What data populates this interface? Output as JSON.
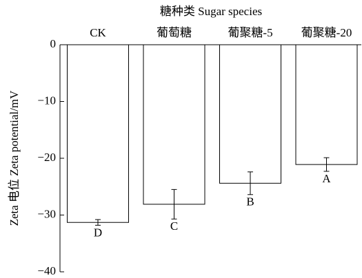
{
  "chart_data": {
    "type": "bar",
    "title": "糖种类 Sugar species",
    "y_label": "Zeta 电位 Zeta potential/mV",
    "categories": [
      "CK",
      "葡萄糖",
      "葡聚糖-5",
      "葡聚糖-20"
    ],
    "values": [
      -31.3,
      -28.1,
      -24.4,
      -21.1
    ],
    "errors": [
      0.5,
      2.6,
      2.0,
      1.2
    ],
    "annotations": [
      "D",
      "C",
      "B",
      "A"
    ],
    "color": "#ffffff",
    "ylim": [
      -40,
      0
    ],
    "yticks": [
      {
        "value": 0,
        "label": "0"
      },
      {
        "value": -10,
        "label": "−10"
      },
      {
        "value": -20,
        "label": "−20"
      },
      {
        "value": -30,
        "label": "−30"
      },
      {
        "value": -40,
        "label": "−40"
      }
    ],
    "grid": false
  }
}
